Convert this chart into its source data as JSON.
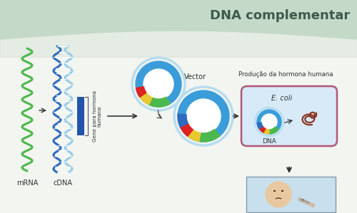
{
  "title": "DNA complementar",
  "title_color": "#3d5a4e",
  "title_fontsize": 13,
  "bg_top_color": "#c5d9c8",
  "bg_wave_color": "#d8e8d8",
  "mrna_label": "mRNA",
  "cdna_label": "cDNA",
  "vector_label": "Vector",
  "gene_label": "Gene para hormona\nhumana",
  "producao_label": "Produção da hormona humana",
  "ecoli_label": "E. coli",
  "dna_label": "DNA",
  "mrna_color": "#4db84d",
  "cdna_dark": "#2e6bbf",
  "cdna_light": "#99cce8",
  "gene_blue": "#2255aa",
  "ring_blue_outer": "#3a9dda",
  "ring_blue_inner": "#b8dcf0",
  "ring_white": "#ffffff",
  "segment_green": "#4db84d",
  "segment_yellow": "#e8c830",
  "segment_red": "#dd2222",
  "segment_blue_dark": "#2e6bbf",
  "ecoli_border": "#b05878",
  "ecoli_fill": "#eee0e8",
  "ecoli_bg": "#d8eaf8",
  "arrow_color": "#333333",
  "label_color": "#333333",
  "person_bg": "#c8e0ee"
}
